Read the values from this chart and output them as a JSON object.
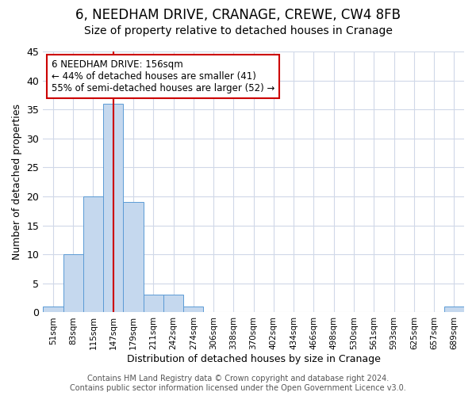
{
  "title": "6, NEEDHAM DRIVE, CRANAGE, CREWE, CW4 8FB",
  "subtitle": "Size of property relative to detached houses in Cranage",
  "xlabel": "Distribution of detached houses by size in Cranage",
  "ylabel": "Number of detached properties",
  "bar_labels": [
    "51sqm",
    "83sqm",
    "115sqm",
    "147sqm",
    "179sqm",
    "211sqm",
    "242sqm",
    "274sqm",
    "306sqm",
    "338sqm",
    "370sqm",
    "402sqm",
    "434sqm",
    "466sqm",
    "498sqm",
    "530sqm",
    "561sqm",
    "593sqm",
    "625sqm",
    "657sqm",
    "689sqm"
  ],
  "bar_heights": [
    1,
    10,
    20,
    36,
    19,
    3,
    3,
    1,
    0,
    0,
    0,
    0,
    0,
    0,
    0,
    0,
    0,
    0,
    0,
    0,
    1
  ],
  "bar_color": "#c5d8ee",
  "bar_edgecolor": "#5b9bd5",
  "ylim": [
    0,
    45
  ],
  "yticks": [
    0,
    5,
    10,
    15,
    20,
    25,
    30,
    35,
    40,
    45
  ],
  "vline_x": 3.0,
  "vline_color": "#cc0000",
  "annotation_title": "6 NEEDHAM DRIVE: 156sqm",
  "annotation_line2": "← 44% of detached houses are smaller (41)",
  "annotation_line3": "55% of semi-detached houses are larger (52) →",
  "annotation_box_facecolor": "#ffffff",
  "annotation_box_edgecolor": "#cc0000",
  "bg_color": "#ffffff",
  "plot_bg_color": "#ffffff",
  "grid_color": "#d0d8e8",
  "footer": "Contains HM Land Registry data © Crown copyright and database right 2024.\nContains public sector information licensed under the Open Government Licence v3.0.",
  "title_fontsize": 12,
  "subtitle_fontsize": 10,
  "footer_fontsize": 7
}
